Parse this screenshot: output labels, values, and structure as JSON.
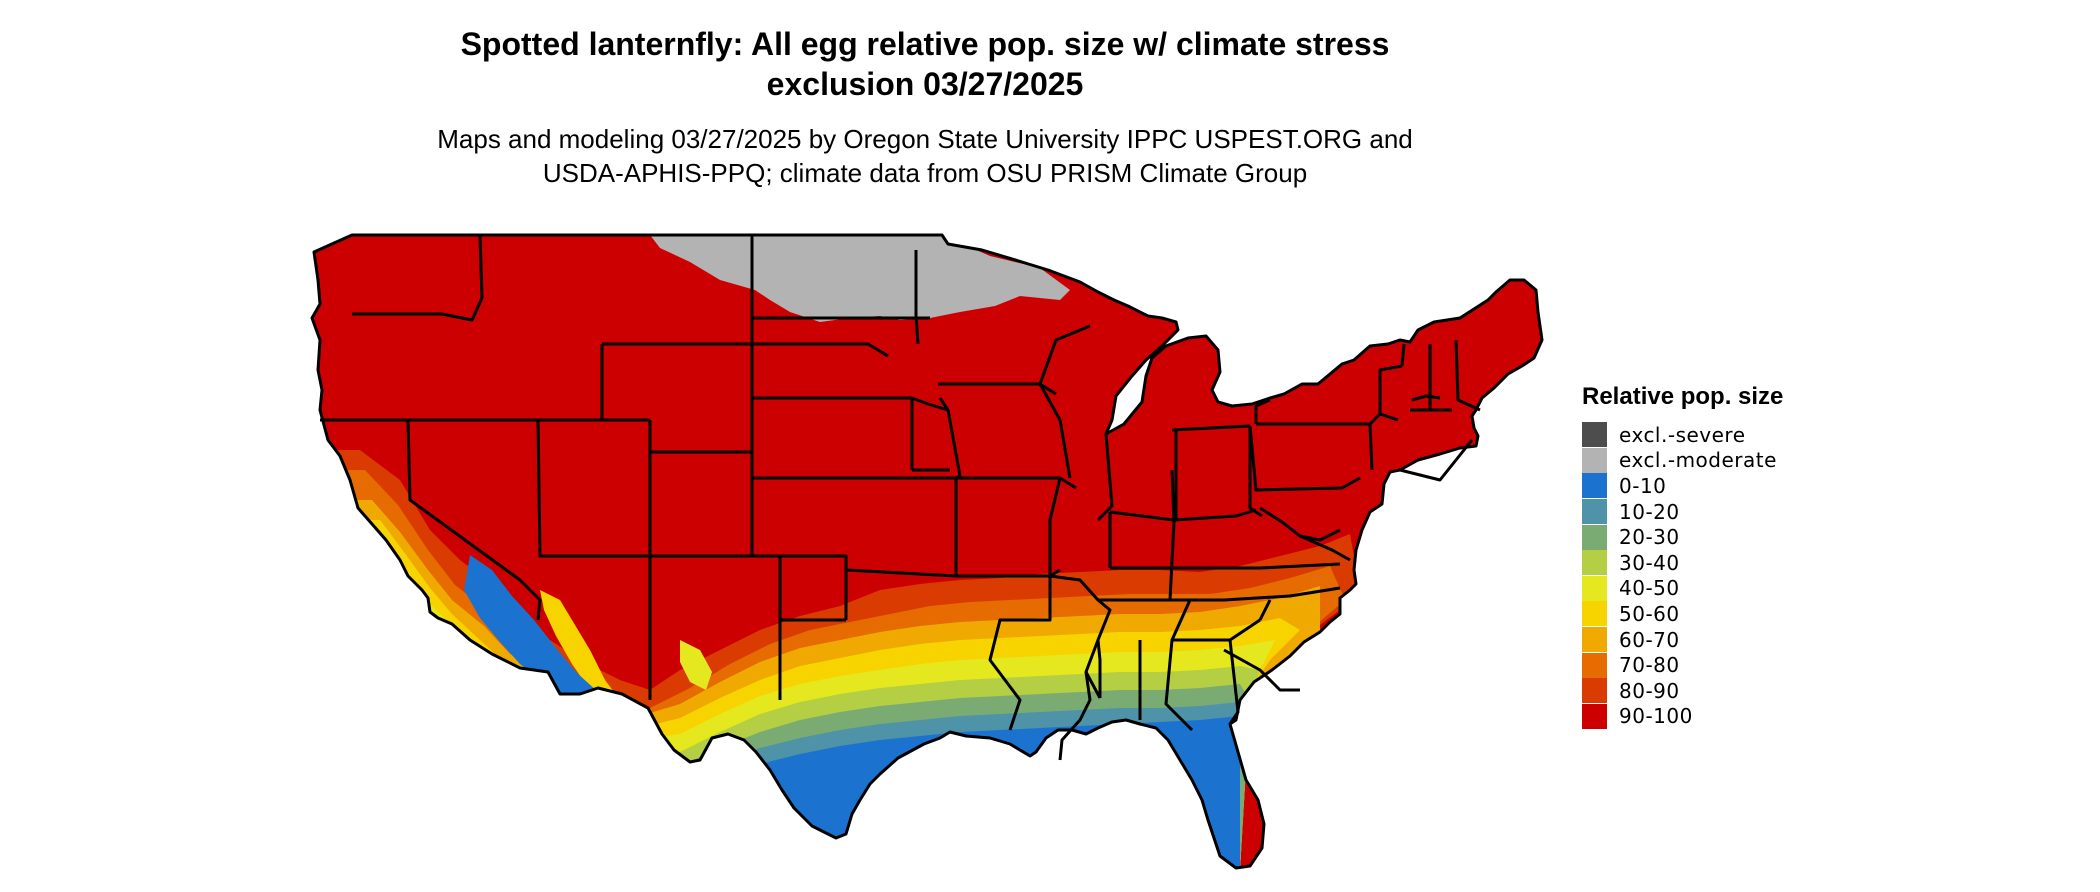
{
  "title": "Spotted lanternfly: All egg relative pop. size w/ climate stress\nexclusion 03/27/2025",
  "subtitle": "Maps and modeling 03/27/2025 by Oregon State University IPPC USPEST.ORG and\nUSDA-APHIS-PPQ; climate data from OSU PRISM Climate Group",
  "legend": {
    "title": "Relative pop. size",
    "items": [
      {
        "label": "excl.-severe",
        "color": "#4d4d4d"
      },
      {
        "label": "excl.-moderate",
        "color": "#b3b3b3"
      },
      {
        "label": "0-10",
        "color": "#1c73cf"
      },
      {
        "label": "10-20",
        "color": "#4f93a8"
      },
      {
        "label": "20-30",
        "color": "#7aab73"
      },
      {
        "label": "30-40",
        "color": "#b5cf45"
      },
      {
        "label": "40-50",
        "color": "#e5e81e"
      },
      {
        "label": "50-60",
        "color": "#f7d400"
      },
      {
        "label": "60-70",
        "color": "#f0a900"
      },
      {
        "label": "70-80",
        "color": "#e66b00"
      },
      {
        "label": "80-90",
        "color": "#d93b00"
      },
      {
        "label": "90-100",
        "color": "#cc0000"
      }
    ]
  },
  "map": {
    "region": "Contiguous United States",
    "dominant_class": "90-100",
    "northern_exclusion_class": "excl.-moderate",
    "southern_low_class": "0-10",
    "state_boundary_color": "#000000"
  }
}
